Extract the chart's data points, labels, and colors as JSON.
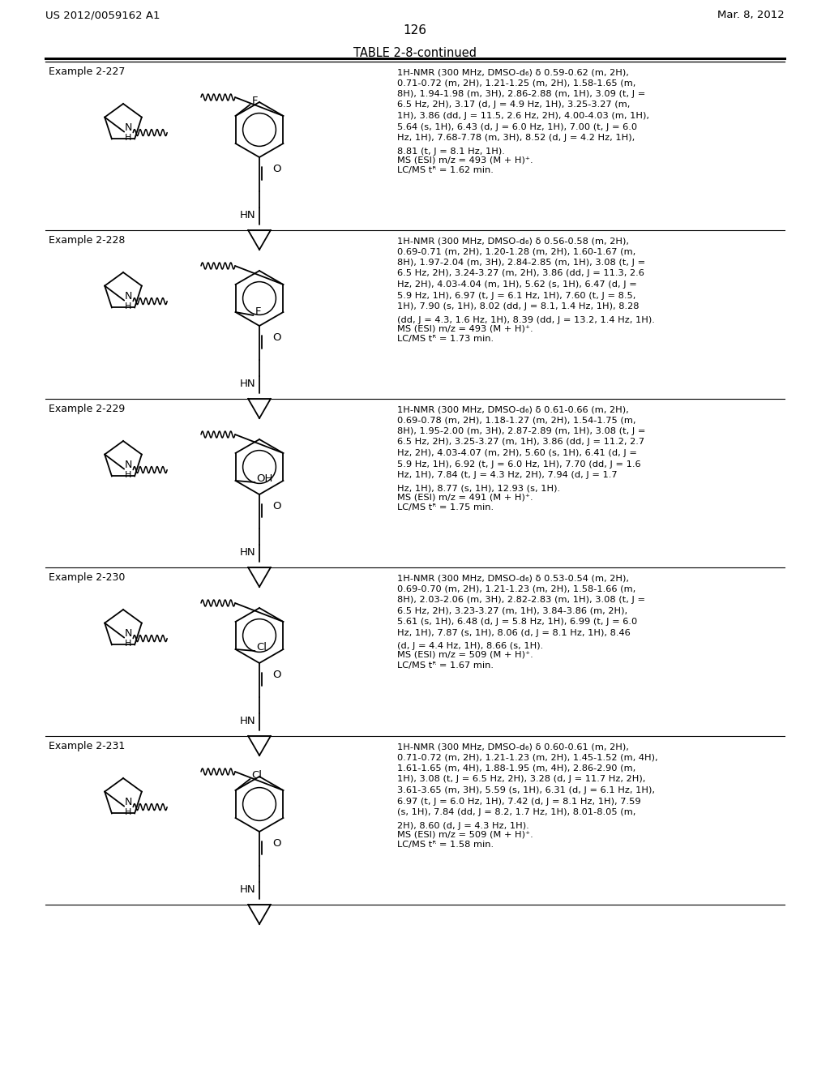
{
  "header_left": "US 2012/0059162 A1",
  "header_right": "Mar. 8, 2012",
  "page_number": "126",
  "table_title": "TABLE 2-8-continued",
  "background_color": "#ffffff",
  "text_color": "#000000",
  "rows": [
    {
      "example": "Example 2-227",
      "nmr_lines": [
        "1H-NMR (300 MHz, DMSO-d₆) δ 0.59-0.62 (m, 2H),",
        "0.71-0.72 (m, 2H), 1.21-1.25 (m, 2H), 1.58-1.65 (m,",
        "8H), 1.94-1.98 (m, 3H), 2.86-2.88 (m, 1H), 3.09 (t, J =",
        "6.5 Hz, 2H), 3.17 (d, J = 4.9 Hz, 1H), 3.25-3.27 (m,",
        "1H), 3.86 (dd, J = 11.5, 2.6 Hz, 2H), 4.00-4.03 (m, 1H),",
        "5.64 (s, 1H), 6.43 (d, J = 6.0 Hz, 1H), 7.00 (t, J = 6.0",
        "Hz, 1H), 7.68-7.78 (m, 3H), 8.52 (d, J = 4.2 Hz, 1H),",
        "8.81 (t, J = 8.1 Hz, 1H).",
        "MS (ESI) m/z = 493 (M + H)⁺.",
        "LC/MS tᴿ = 1.62 min."
      ],
      "substituent": "F",
      "sub_pos": "ortho_top_right"
    },
    {
      "example": "Example 2-228",
      "nmr_lines": [
        "1H-NMR (300 MHz, DMSO-d₆) δ 0.56-0.58 (m, 2H),",
        "0.69-0.71 (m, 2H), 1.20-1.28 (m, 2H), 1.60-1.67 (m,",
        "8H), 1.97-2.04 (m, 3H), 2.84-2.85 (m, 1H), 3.08 (t, J =",
        "6.5 Hz, 2H), 3.24-3.27 (m, 2H), 3.86 (dd, J = 11.3, 2.6",
        "Hz, 2H), 4.03-4.04 (m, 1H), 5.62 (s, 1H), 6.47 (d, J =",
        "5.9 Hz, 1H), 6.97 (t, J = 6.1 Hz, 1H), 7.60 (t, J = 8.5,",
        "1H), 7.90 (s, 1H), 8.02 (dd, J = 8.1, 1.4 Hz, 1H), 8.28",
        "(dd, J = 4.3, 1.6 Hz, 1H), 8.39 (dd, J = 13.2, 1.4 Hz, 1H).",
        "MS (ESI) m/z = 493 (M + H)⁺.",
        "LC/MS tᴿ = 1.73 min."
      ],
      "substituent": "F",
      "sub_pos": "meta_bottom_right"
    },
    {
      "example": "Example 2-229",
      "nmr_lines": [
        "1H-NMR (300 MHz, DMSO-d₆) δ 0.61-0.66 (m, 2H),",
        "0.69-0.78 (m, 2H), 1.18-1.27 (m, 2H), 1.54-1.75 (m,",
        "8H), 1.95-2.00 (m, 3H), 2.87-2.89 (m, 1H), 3.08 (t, J =",
        "6.5 Hz, 2H), 3.25-3.27 (m, 1H), 3.86 (dd, J = 11.2, 2.7",
        "Hz, 2H), 4.03-4.07 (m, 2H), 5.60 (s, 1H), 6.41 (d, J =",
        "5.9 Hz, 1H), 6.92 (t, J = 6.0 Hz, 1H), 7.70 (dd, J = 1.6",
        "Hz, 1H), 7.84 (t, J = 4.3 Hz, 2H), 7.94 (d, J = 1.7",
        "Hz, 1H), 8.77 (s, 1H), 12.93 (s, 1H).",
        "MS (ESI) m/z = 491 (M + H)⁺.",
        "LC/MS tᴿ = 1.75 min."
      ],
      "substituent": "OH",
      "sub_pos": "para_right"
    },
    {
      "example": "Example 2-230",
      "nmr_lines": [
        "1H-NMR (300 MHz, DMSO-d₆) δ 0.53-0.54 (m, 2H),",
        "0.69-0.70 (m, 2H), 1.21-1.23 (m, 2H), 1.58-1.66 (m,",
        "8H), 2.03-2.06 (m, 3H), 2.82-2.83 (m, 1H), 3.08 (t, J =",
        "6.5 Hz, 2H), 3.23-3.27 (m, 1H), 3.84-3.86 (m, 2H),",
        "5.61 (s, 1H), 6.48 (d, J = 5.8 Hz, 1H), 6.99 (t, J = 6.0",
        "Hz, 1H), 7.87 (s, 1H), 8.06 (d, J = 8.1 Hz, 1H), 8.46",
        "(d, J = 4.4 Hz, 1H), 8.66 (s, 1H).",
        "MS (ESI) m/z = 509 (M + H)⁺.",
        "LC/MS tᴿ = 1.67 min."
      ],
      "substituent": "Cl",
      "sub_pos": "para_right"
    },
    {
      "example": "Example 2-231",
      "nmr_lines": [
        "1H-NMR (300 MHz, DMSO-d₆) δ 0.60-0.61 (m, 2H),",
        "0.71-0.72 (m, 2H), 1.21-1.23 (m, 2H), 1.45-1.52 (m, 4H),",
        "1.61-1.65 (m, 4H), 1.88-1.95 (m, 4H), 2.86-2.90 (m,",
        "1H), 3.08 (t, J = 6.5 Hz, 2H), 3.28 (d, J = 11.7 Hz, 2H),",
        "3.61-3.65 (m, 3H), 5.59 (s, 1H), 6.31 (d, J = 6.1 Hz, 1H),",
        "6.97 (t, J = 6.0 Hz, 1H), 7.42 (d, J = 8.1 Hz, 1H), 7.59",
        "(s, 1H), 7.84 (dd, J = 8.2, 1.7 Hz, 1H), 8.01-8.05 (m,",
        "2H), 8.60 (d, J = 4.3 Hz, 1H).",
        "MS (ESI) m/z = 509 (M + H)⁺.",
        "LC/MS tᴿ = 1.58 min."
      ],
      "substituent": "Cl",
      "sub_pos": "ortho_top_right"
    }
  ]
}
